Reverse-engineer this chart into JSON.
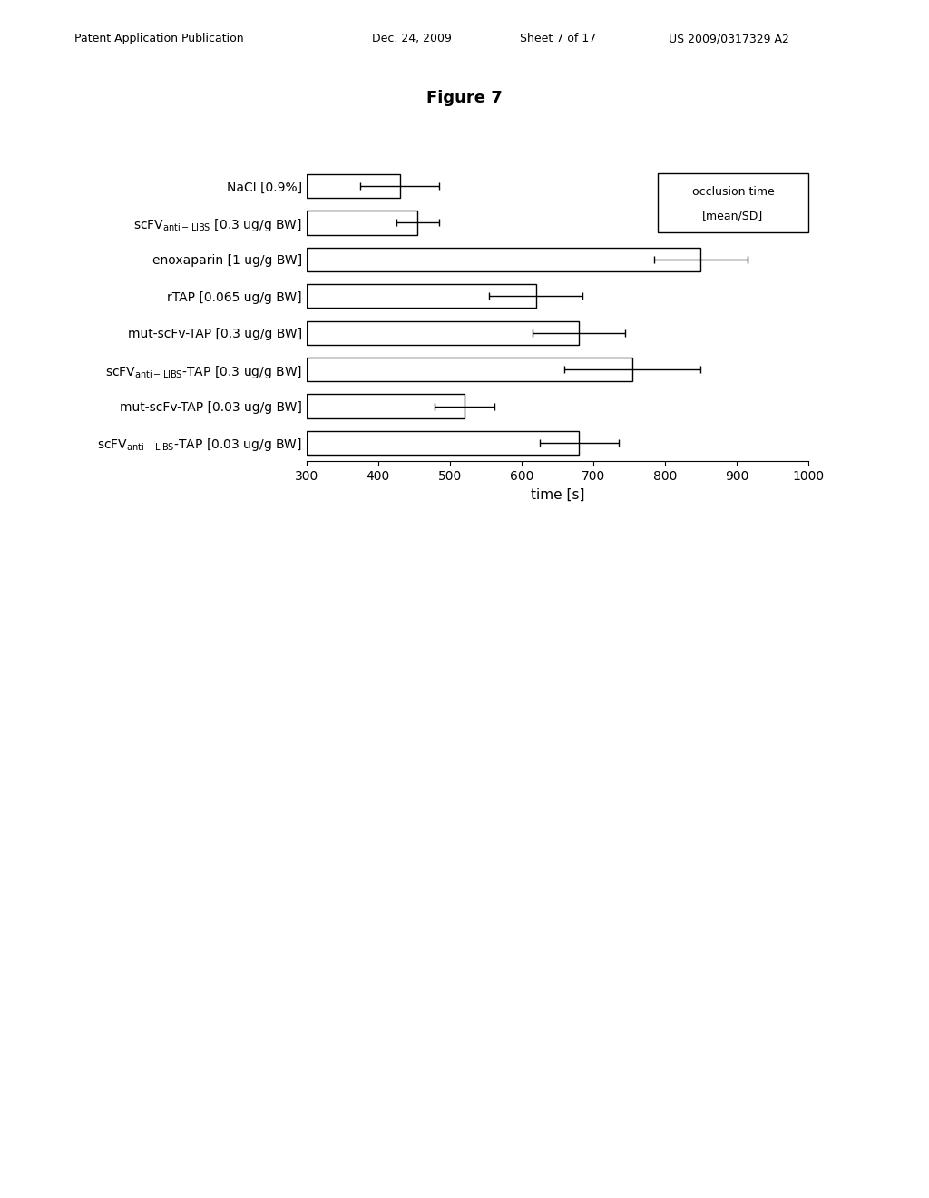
{
  "title": "Figure 7",
  "xlabel": "time [s]",
  "values": [
    430,
    455,
    850,
    620,
    680,
    755,
    520,
    680
  ],
  "errors": [
    55,
    30,
    65,
    65,
    65,
    95,
    42,
    55
  ],
  "xlim": [
    300,
    1000
  ],
  "xticks": [
    300,
    400,
    500,
    600,
    700,
    800,
    900,
    1000
  ],
  "bar_color": "#ffffff",
  "bar_edgecolor": "#000000",
  "legend_text_line1": "occlusion time",
  "legend_text_line2": "[mean/SD]",
  "background_color": "#ffffff",
  "title_fontsize": 13,
  "axis_fontsize": 11,
  "tick_fontsize": 10,
  "label_fontsize": 10,
  "bar_height": 0.65,
  "header_left": "Patent Application Publication",
  "header_mid1": "Dec. 24, 2009",
  "header_mid2": "Sheet 7 of 17",
  "header_right": "US 2009/0317329 A2"
}
